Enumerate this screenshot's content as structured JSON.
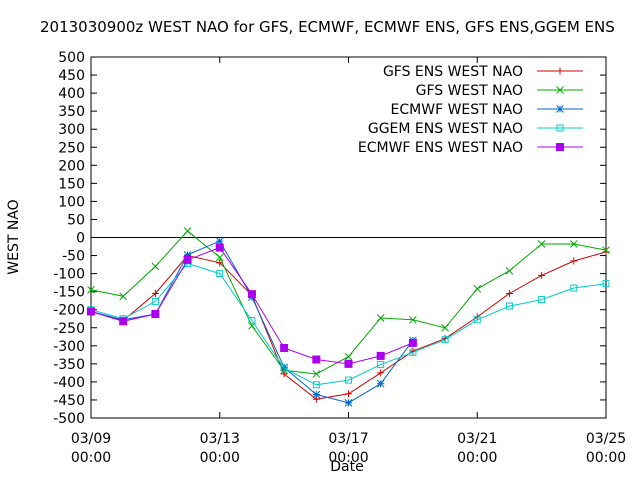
{
  "chart_data": {
    "type": "line",
    "title": "2013030900z WEST NAO for GFS, ECMWF, ECMWF ENS, GFS ENS,GGEM ENS",
    "xlabel": "Date",
    "ylabel": "WEST NAO",
    "ylim": [
      -500,
      500
    ],
    "xlim": [
      0,
      16
    ],
    "y_ticks": [
      500,
      450,
      400,
      350,
      300,
      250,
      200,
      150,
      100,
      50,
      0,
      -50,
      -100,
      -150,
      -200,
      -250,
      -300,
      -350,
      -400,
      -450,
      -500
    ],
    "x_ticks": [
      {
        "x": 0,
        "line1": "03/09",
        "line2": "00:00"
      },
      {
        "x": 4,
        "line1": "03/13",
        "line2": "00:00"
      },
      {
        "x": 8,
        "line1": "03/17",
        "line2": "00:00"
      },
      {
        "x": 12,
        "line1": "03/21",
        "line2": "00:00"
      },
      {
        "x": 16,
        "line1": "03/25",
        "line2": "00:00"
      }
    ],
    "zero_line": true,
    "legend_position": "top-right",
    "series": [
      {
        "name": "GFS ENS WEST NAO",
        "color": "#cc0000",
        "marker": "plus",
        "x": [
          0,
          1,
          2,
          3,
          4,
          5,
          6,
          7,
          8,
          9,
          10,
          11,
          12,
          13,
          14,
          15,
          16
        ],
        "y": [
          -205,
          -230,
          -155,
          -50,
          -70,
          -160,
          -378,
          -448,
          -433,
          -375,
          -315,
          -280,
          -220,
          -155,
          -105,
          -65,
          -40
        ]
      },
      {
        "name": "GFS WEST NAO",
        "color": "#00aa00",
        "marker": "cross",
        "x": [
          0,
          1,
          2,
          3,
          4,
          5,
          6,
          7,
          8,
          9,
          10,
          11,
          12,
          13,
          14,
          15,
          16
        ],
        "y": [
          -145,
          -163,
          -80,
          18,
          -55,
          -245,
          -368,
          -378,
          -330,
          -223,
          -228,
          -250,
          -142,
          -92,
          -18,
          -18,
          -35
        ]
      },
      {
        "name": "ECMWF WEST NAO",
        "color": "#0066cc",
        "marker": "star",
        "x": [
          0,
          1,
          2,
          3,
          4,
          5,
          6,
          7,
          8,
          9,
          10
        ],
        "y": [
          -205,
          -228,
          -212,
          -48,
          -10,
          -165,
          -360,
          -435,
          -458,
          -405,
          -285
        ]
      },
      {
        "name": "GGEM ENS WEST NAO",
        "color": "#00cccc",
        "marker": "square-open",
        "x": [
          0,
          1,
          2,
          3,
          4,
          5,
          6,
          7,
          8,
          9,
          10,
          11,
          12,
          13,
          14,
          15,
          16
        ],
        "y": [
          -200,
          -225,
          -177,
          -72,
          -100,
          -230,
          -362,
          -408,
          -395,
          -352,
          -318,
          -283,
          -228,
          -190,
          -172,
          -140,
          -128
        ]
      },
      {
        "name": "ECMWF ENS WEST NAO",
        "color": "#aa00ee",
        "marker": "square-filled",
        "x": [
          0,
          1,
          2,
          3,
          4,
          5,
          6,
          7,
          8,
          9,
          10
        ],
        "y": [
          -205,
          -232,
          -212,
          -62,
          -28,
          -157,
          -306,
          -338,
          -350,
          -328,
          -292
        ]
      }
    ]
  }
}
